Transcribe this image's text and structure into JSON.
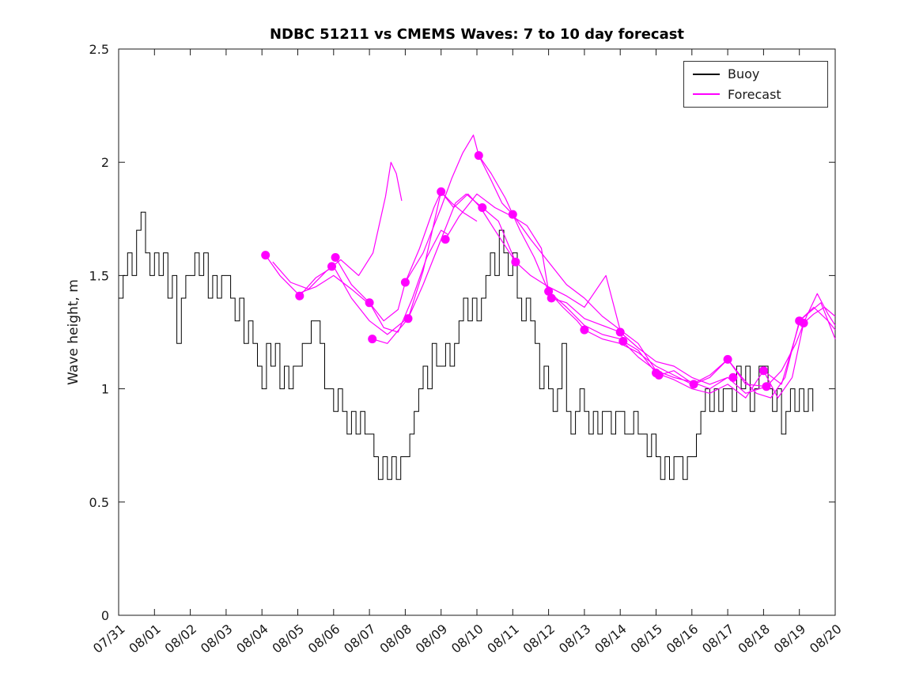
{
  "chart_data": {
    "type": "line",
    "title": "NDBC 51211 vs CMEMS Waves: 7 to 10 day forecast",
    "xlabel": "",
    "ylabel": "Wave height, m",
    "xlim": [
      0,
      20
    ],
    "ylim": [
      0,
      2.5
    ],
    "grid": false,
    "x_tick_positions": [
      0,
      1,
      2,
      3,
      4,
      5,
      6,
      7,
      8,
      9,
      10,
      11,
      12,
      13,
      14,
      15,
      16,
      17,
      18,
      19,
      20
    ],
    "x_tick_labels": [
      "07/31",
      "08/01",
      "08/02",
      "08/03",
      "08/04",
      "08/05",
      "08/06",
      "08/07",
      "08/08",
      "08/09",
      "08/10",
      "08/11",
      "08/12",
      "08/13",
      "08/14",
      "08/15",
      "08/16",
      "08/17",
      "08/18",
      "08/19",
      "08/20"
    ],
    "y_ticks": [
      0,
      0.5,
      1,
      1.5,
      2,
      2.5
    ],
    "y_tick_labels": [
      "0",
      "0.5",
      "1",
      "1.5",
      "2",
      "2.5"
    ],
    "legend": {
      "position": "northeast",
      "entries": [
        {
          "label": "Buoy",
          "color": "#000000"
        },
        {
          "label": "Forecast",
          "color": "#ff00ff"
        }
      ]
    },
    "buoy": {
      "name": "Buoy",
      "color": "#000000",
      "units": "days since 07/31",
      "t0": 0,
      "dt": 0.125,
      "values": [
        1.4,
        1.5,
        1.6,
        1.5,
        1.7,
        1.78,
        1.6,
        1.5,
        1.6,
        1.5,
        1.6,
        1.4,
        1.5,
        1.2,
        1.4,
        1.5,
        1.5,
        1.6,
        1.5,
        1.6,
        1.4,
        1.5,
        1.4,
        1.5,
        1.5,
        1.4,
        1.3,
        1.4,
        1.2,
        1.3,
        1.2,
        1.1,
        1.0,
        1.2,
        1.1,
        1.2,
        1.0,
        1.1,
        1.0,
        1.1,
        1.1,
        1.2,
        1.2,
        1.3,
        1.3,
        1.2,
        1.0,
        1.0,
        0.9,
        1.0,
        0.9,
        0.8,
        0.9,
        0.8,
        0.9,
        0.8,
        0.8,
        0.7,
        0.6,
        0.7,
        0.6,
        0.7,
        0.6,
        0.7,
        0.7,
        0.8,
        0.9,
        1.0,
        1.1,
        1.0,
        1.2,
        1.1,
        1.1,
        1.2,
        1.1,
        1.2,
        1.3,
        1.4,
        1.3,
        1.4,
        1.3,
        1.4,
        1.5,
        1.6,
        1.5,
        1.7,
        1.6,
        1.5,
        1.6,
        1.4,
        1.3,
        1.4,
        1.3,
        1.2,
        1.0,
        1.1,
        1.0,
        0.9,
        1.0,
        1.2,
        0.9,
        0.8,
        0.9,
        1.0,
        0.9,
        0.8,
        0.9,
        0.8,
        0.9,
        0.9,
        0.8,
        0.9,
        0.9,
        0.8,
        0.8,
        0.9,
        0.8,
        0.8,
        0.7,
        0.8,
        0.7,
        0.6,
        0.7,
        0.6,
        0.7,
        0.7,
        0.6,
        0.7,
        0.7,
        0.8,
        0.9,
        1.0,
        0.9,
        1.0,
        0.9,
        1.0,
        1.0,
        0.9,
        1.1,
        1.0,
        1.1,
        0.9,
        1.0,
        1.1,
        1.1,
        1.0,
        0.9,
        1.0,
        0.8,
        0.9,
        1.0,
        0.9,
        1.0,
        0.9,
        1.0,
        0.9
      ]
    },
    "forecast": {
      "name": "Forecast",
      "color": "#ff00ff",
      "runs": [
        [
          [
            4.1,
            1.59
          ],
          [
            4.5,
            1.5
          ],
          [
            5.0,
            1.42
          ],
          [
            5.5,
            1.45
          ],
          [
            6.0,
            1.5
          ],
          [
            6.5,
            1.44
          ],
          [
            7.1,
            1.36
          ]
        ],
        [
          [
            5.05,
            1.41
          ],
          [
            5.5,
            1.49
          ],
          [
            6.0,
            1.54
          ],
          [
            6.5,
            1.4
          ],
          [
            7.0,
            1.3
          ],
          [
            7.5,
            1.24
          ],
          [
            8.05,
            1.31
          ]
        ],
        [
          [
            4.3,
            1.56
          ],
          [
            4.8,
            1.47
          ],
          [
            5.3,
            1.44
          ],
          [
            5.8,
            1.52
          ],
          [
            6.2,
            1.57
          ],
          [
            6.7,
            1.5
          ],
          [
            7.1,
            1.6
          ],
          [
            7.45,
            1.85
          ],
          [
            7.6,
            2.0
          ],
          [
            7.75,
            1.95
          ],
          [
            7.9,
            1.83
          ]
        ],
        [
          [
            6.05,
            1.58
          ],
          [
            6.5,
            1.46
          ],
          [
            7.0,
            1.38
          ],
          [
            7.4,
            1.27
          ],
          [
            7.8,
            1.25
          ],
          [
            8.2,
            1.4
          ],
          [
            8.6,
            1.58
          ],
          [
            9.0,
            1.7
          ],
          [
            9.2,
            1.68
          ]
        ],
        [
          [
            7.0,
            1.38
          ],
          [
            7.4,
            1.3
          ],
          [
            7.8,
            1.35
          ],
          [
            8.0,
            1.47
          ],
          [
            8.4,
            1.62
          ],
          [
            8.8,
            1.8
          ],
          [
            9.0,
            1.87
          ],
          [
            9.3,
            1.82
          ],
          [
            9.6,
            1.78
          ],
          [
            10.0,
            1.74
          ]
        ],
        [
          [
            7.08,
            1.22
          ],
          [
            7.5,
            1.2
          ],
          [
            8.08,
            1.31
          ],
          [
            8.5,
            1.46
          ],
          [
            9.0,
            1.66
          ],
          [
            9.4,
            1.82
          ],
          [
            9.7,
            1.86
          ],
          [
            10.15,
            1.8
          ]
        ],
        [
          [
            8.0,
            1.47
          ],
          [
            8.5,
            1.6
          ],
          [
            9.0,
            1.8
          ],
          [
            9.3,
            1.93
          ],
          [
            9.6,
            2.04
          ],
          [
            9.9,
            2.12
          ],
          [
            10.05,
            2.03
          ],
          [
            10.4,
            1.92
          ],
          [
            10.7,
            1.82
          ],
          [
            11.0,
            1.77
          ]
        ],
        [
          [
            8.08,
            1.31
          ],
          [
            8.5,
            1.52
          ],
          [
            9.0,
            1.87
          ],
          [
            9.35,
            1.8
          ],
          [
            9.75,
            1.86
          ],
          [
            10.1,
            1.8
          ],
          [
            10.5,
            1.7
          ],
          [
            11.08,
            1.56
          ]
        ],
        [
          [
            9.12,
            1.66
          ],
          [
            9.5,
            1.76
          ],
          [
            10.0,
            1.86
          ],
          [
            10.5,
            1.8
          ],
          [
            11.0,
            1.76
          ],
          [
            11.4,
            1.72
          ],
          [
            11.8,
            1.62
          ],
          [
            12.0,
            1.43
          ],
          [
            12.4,
            1.36
          ],
          [
            12.8,
            1.3
          ],
          [
            13.0,
            1.26
          ]
        ],
        [
          [
            10.05,
            2.03
          ],
          [
            10.4,
            1.95
          ],
          [
            10.8,
            1.84
          ],
          [
            11.2,
            1.7
          ],
          [
            11.6,
            1.58
          ],
          [
            12.08,
            1.4
          ],
          [
            12.5,
            1.38
          ],
          [
            13.0,
            1.31
          ],
          [
            13.5,
            1.28
          ],
          [
            14.0,
            1.25
          ]
        ],
        [
          [
            10.15,
            1.8
          ],
          [
            10.6,
            1.74
          ],
          [
            11.08,
            1.56
          ],
          [
            11.5,
            1.5
          ],
          [
            12.0,
            1.45
          ],
          [
            12.5,
            1.41
          ],
          [
            13.0,
            1.36
          ],
          [
            13.3,
            1.43
          ],
          [
            13.6,
            1.5
          ],
          [
            13.8,
            1.38
          ],
          [
            14.08,
            1.21
          ],
          [
            14.5,
            1.17
          ],
          [
            15.0,
            1.07
          ]
        ],
        [
          [
            11.0,
            1.77
          ],
          [
            11.5,
            1.66
          ],
          [
            12.0,
            1.56
          ],
          [
            12.5,
            1.46
          ],
          [
            13.0,
            1.4
          ],
          [
            13.5,
            1.32
          ],
          [
            14.0,
            1.26
          ],
          [
            14.5,
            1.2
          ],
          [
            15.08,
            1.06
          ],
          [
            15.5,
            1.08
          ],
          [
            16.05,
            1.02
          ]
        ],
        [
          [
            12.0,
            1.43
          ],
          [
            12.5,
            1.36
          ],
          [
            13.0,
            1.28
          ],
          [
            13.5,
            1.24
          ],
          [
            14.0,
            1.22
          ],
          [
            14.5,
            1.14
          ],
          [
            15.0,
            1.08
          ],
          [
            15.5,
            1.05
          ],
          [
            16.0,
            1.03
          ],
          [
            16.5,
            1.0
          ],
          [
            17.0,
            1.05
          ]
        ],
        [
          [
            13.0,
            1.26
          ],
          [
            13.5,
            1.22
          ],
          [
            14.0,
            1.2
          ],
          [
            14.5,
            1.16
          ],
          [
            15.0,
            1.1
          ],
          [
            15.5,
            1.06
          ],
          [
            16.0,
            1.02
          ],
          [
            16.5,
            1.06
          ],
          [
            17.0,
            1.13
          ]
        ],
        [
          [
            14.0,
            1.25
          ],
          [
            14.5,
            1.18
          ],
          [
            15.0,
            1.12
          ],
          [
            15.5,
            1.1
          ],
          [
            16.0,
            1.05
          ],
          [
            16.5,
            1.02
          ],
          [
            17.0,
            1.05
          ],
          [
            17.5,
            0.98
          ],
          [
            18.08,
            1.01
          ]
        ],
        [
          [
            15.0,
            1.07
          ],
          [
            15.5,
            1.04
          ],
          [
            16.0,
            1.0
          ],
          [
            16.5,
            0.98
          ],
          [
            17.0,
            1.02
          ],
          [
            17.5,
            0.96
          ],
          [
            18.0,
            1.08
          ],
          [
            18.5,
            1.02
          ],
          [
            19.0,
            1.29
          ]
        ],
        [
          [
            16.05,
            1.02
          ],
          [
            16.5,
            1.05
          ],
          [
            17.0,
            1.13
          ],
          [
            17.4,
            1.05
          ],
          [
            17.8,
            0.98
          ],
          [
            18.2,
            0.96
          ],
          [
            18.6,
            1.05
          ],
          [
            19.0,
            1.3
          ],
          [
            19.4,
            1.36
          ],
          [
            19.8,
            1.3
          ],
          [
            20.0,
            1.26
          ]
        ],
        [
          [
            17.0,
            1.13
          ],
          [
            17.5,
            1.02
          ],
          [
            18.08,
            1.01
          ],
          [
            18.5,
            1.08
          ],
          [
            18.9,
            1.2
          ],
          [
            19.2,
            1.32
          ],
          [
            19.5,
            1.42
          ],
          [
            19.8,
            1.33
          ],
          [
            20.0,
            1.28
          ]
        ],
        [
          [
            18.0,
            1.08
          ],
          [
            18.4,
            0.96
          ],
          [
            18.8,
            1.05
          ],
          [
            19.12,
            1.29
          ],
          [
            19.4,
            1.33
          ],
          [
            19.7,
            1.36
          ],
          [
            20.0,
            1.32
          ]
        ],
        [
          [
            19.0,
            1.3
          ],
          [
            19.3,
            1.34
          ],
          [
            19.6,
            1.38
          ],
          [
            20.0,
            1.22
          ]
        ]
      ]
    },
    "forecast_markers": [
      [
        4.1,
        1.59
      ],
      [
        5.05,
        1.41
      ],
      [
        5.95,
        1.54
      ],
      [
        6.05,
        1.58
      ],
      [
        7.0,
        1.38
      ],
      [
        7.08,
        1.22
      ],
      [
        8.0,
        1.47
      ],
      [
        8.08,
        1.31
      ],
      [
        9.0,
        1.87
      ],
      [
        9.12,
        1.66
      ],
      [
        10.05,
        2.03
      ],
      [
        10.15,
        1.8
      ],
      [
        11.0,
        1.77
      ],
      [
        11.08,
        1.56
      ],
      [
        12.0,
        1.43
      ],
      [
        12.08,
        1.4
      ],
      [
        13.0,
        1.26
      ],
      [
        14.0,
        1.25
      ],
      [
        14.08,
        1.21
      ],
      [
        15.0,
        1.07
      ],
      [
        15.08,
        1.06
      ],
      [
        16.05,
        1.02
      ],
      [
        17.0,
        1.13
      ],
      [
        17.15,
        1.05
      ],
      [
        18.0,
        1.08
      ],
      [
        18.08,
        1.01
      ],
      [
        19.0,
        1.3
      ],
      [
        19.12,
        1.29
      ]
    ]
  }
}
